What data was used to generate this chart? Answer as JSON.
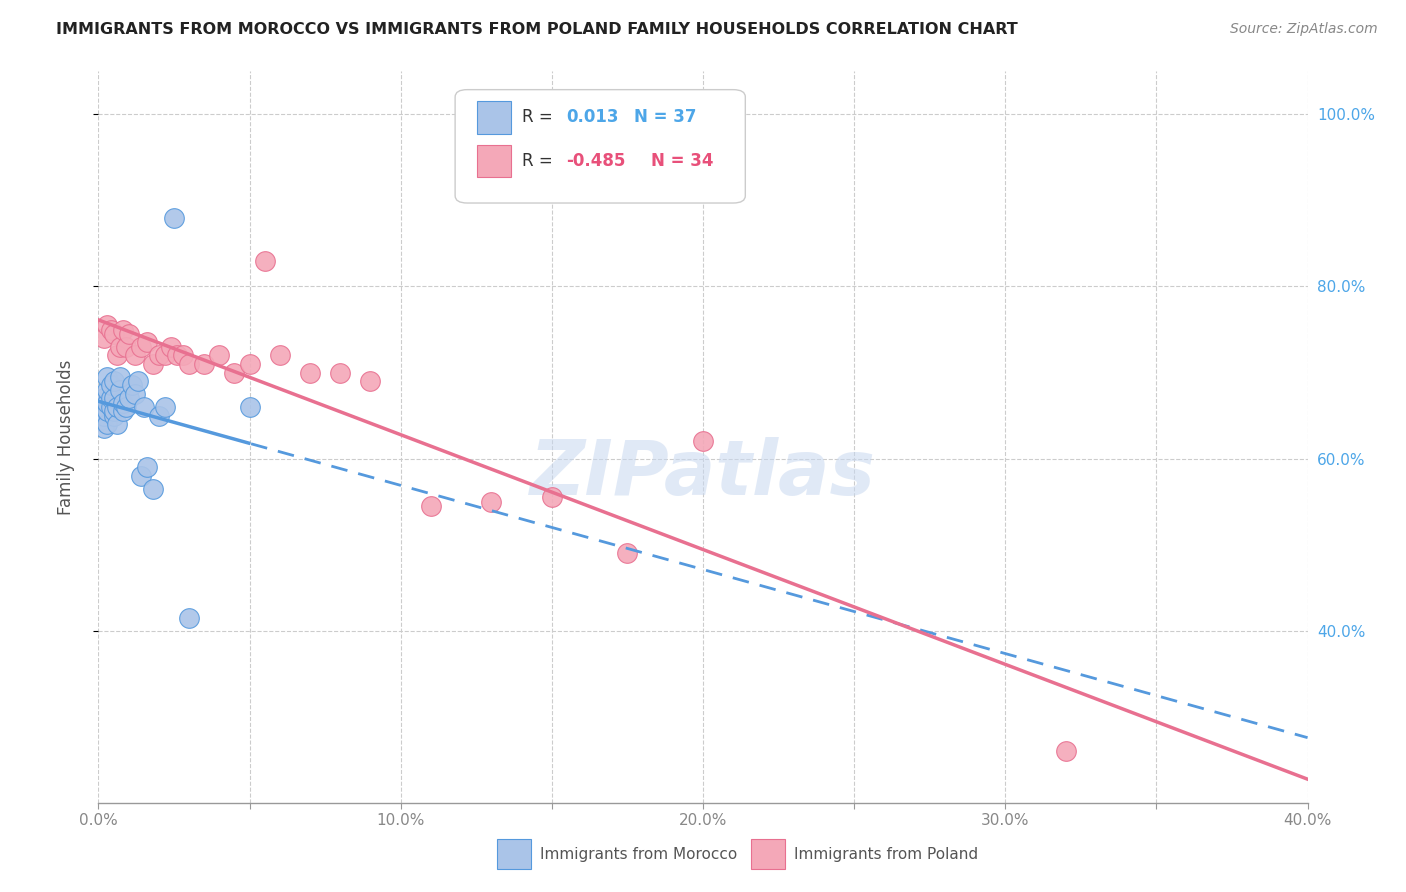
{
  "title": "IMMIGRANTS FROM MOROCCO VS IMMIGRANTS FROM POLAND FAMILY HOUSEHOLDS CORRELATION CHART",
  "source": "Source: ZipAtlas.com",
  "ylabel_label": "Family Households",
  "x_min": 0.0,
  "x_max": 0.4,
  "y_min": 0.2,
  "y_max": 1.05,
  "color_morocco": "#aac4e8",
  "color_poland": "#f4a8b8",
  "color_r1_text": "#4da6e8",
  "color_r2_text": "#e8507a",
  "trendline1_color": "#5599dd",
  "trendline2_color": "#e87090",
  "watermark_color": "#c8d8f0",
  "morocco_x": [
    0.001,
    0.001,
    0.002,
    0.002,
    0.002,
    0.003,
    0.003,
    0.003,
    0.003,
    0.003,
    0.004,
    0.004,
    0.004,
    0.005,
    0.005,
    0.005,
    0.005,
    0.006,
    0.006,
    0.007,
    0.007,
    0.008,
    0.008,
    0.009,
    0.01,
    0.011,
    0.012,
    0.013,
    0.014,
    0.015,
    0.016,
    0.018,
    0.02,
    0.022,
    0.025,
    0.03,
    0.05
  ],
  "morocco_y": [
    0.645,
    0.66,
    0.635,
    0.65,
    0.67,
    0.64,
    0.655,
    0.665,
    0.68,
    0.695,
    0.66,
    0.67,
    0.685,
    0.65,
    0.655,
    0.67,
    0.69,
    0.64,
    0.66,
    0.68,
    0.695,
    0.655,
    0.665,
    0.66,
    0.67,
    0.685,
    0.675,
    0.69,
    0.58,
    0.66,
    0.59,
    0.565,
    0.65,
    0.66,
    0.88,
    0.415,
    0.66
  ],
  "poland_x": [
    0.002,
    0.003,
    0.004,
    0.005,
    0.006,
    0.007,
    0.008,
    0.009,
    0.01,
    0.012,
    0.014,
    0.016,
    0.018,
    0.02,
    0.022,
    0.024,
    0.026,
    0.028,
    0.03,
    0.035,
    0.04,
    0.045,
    0.05,
    0.055,
    0.06,
    0.07,
    0.08,
    0.09,
    0.11,
    0.13,
    0.15,
    0.175,
    0.2,
    0.32
  ],
  "poland_y": [
    0.74,
    0.755,
    0.75,
    0.745,
    0.72,
    0.73,
    0.75,
    0.73,
    0.745,
    0.72,
    0.73,
    0.735,
    0.71,
    0.72,
    0.72,
    0.73,
    0.72,
    0.72,
    0.71,
    0.71,
    0.72,
    0.7,
    0.71,
    0.83,
    0.72,
    0.7,
    0.7,
    0.69,
    0.545,
    0.55,
    0.555,
    0.49,
    0.62,
    0.26
  ],
  "xtick_positions": [
    0.0,
    0.05,
    0.1,
    0.15,
    0.2,
    0.25,
    0.3,
    0.35,
    0.4
  ],
  "xtick_labels": [
    "0.0%",
    "",
    "10.0%",
    "",
    "20.0%",
    "",
    "30.0%",
    "",
    "40.0%"
  ],
  "ytick_positions": [
    1.0,
    0.8,
    0.6,
    0.4
  ],
  "ytick_labels": [
    "100.0%",
    "80.0%",
    "60.0%",
    "40.0%"
  ],
  "morocco_trend_solid_end": 0.05,
  "trendline_x_min": 0.0,
  "trendline_x_max": 0.4
}
